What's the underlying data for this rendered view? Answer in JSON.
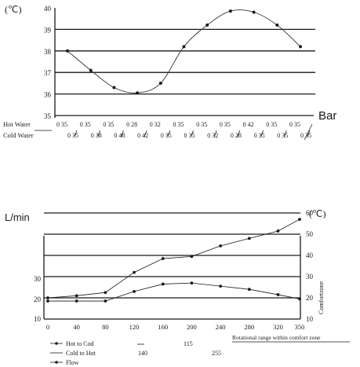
{
  "chart_data": [
    {
      "type": "line",
      "title": "",
      "y_unit": "(℃)",
      "x_unit": "Bar",
      "ylim": [
        35,
        40
      ],
      "y_ticks": [
        35,
        36,
        37,
        38,
        39,
        40
      ],
      "grid": true,
      "rows": [
        {
          "label": "Hot Water",
          "values": [
            "0 35",
            "0 35",
            "0 35",
            "0 28",
            "0 32",
            "0 35",
            "0 35",
            "0 35",
            "0 42",
            "0 35",
            "0 35",
            ""
          ]
        },
        {
          "label": "Cold Water",
          "values": [
            "0 35",
            "0 38",
            "0 48",
            "0 42",
            "0 35",
            "0 35",
            "0 32",
            "0 28",
            "0 35",
            "0 35",
            "0 35"
          ]
        }
      ],
      "series": [
        {
          "values": [
            38.0,
            37.1,
            36.3,
            36.05,
            36.5,
            38.2,
            39.2,
            39.85,
            39.8,
            39.2,
            38.2
          ]
        }
      ]
    },
    {
      "type": "line",
      "title": "",
      "y_left_unit": "L/min",
      "y_right_unit": "(℃)",
      "right_axis_label": "Comfortzone",
      "x_ticks": [
        "0",
        "40",
        "80",
        "120",
        "160",
        "200",
        "240",
        "280",
        "320",
        "350"
      ],
      "x_values": [
        0,
        40,
        80,
        120,
        160,
        200,
        240,
        280,
        320,
        350
      ],
      "xlim": [
        0,
        350
      ],
      "y_left_ticks": [
        "10",
        "20",
        "30"
      ],
      "y_right_ticks": [
        "10",
        "20",
        "30",
        "40",
        "50",
        "60"
      ],
      "ylim_right": [
        10,
        60
      ],
      "grid": true,
      "series": [
        {
          "name": "Hot to Cod",
          "values": [
            18.5,
            18.5,
            18.5,
            23.0,
            26.5,
            27.0,
            25.5,
            24.0,
            21.5,
            19.5
          ]
        },
        {
          "name": "Flow",
          "values": [
            20.0,
            21.0,
            22.5,
            32.0,
            38.5,
            39.5,
            44.5,
            48.0,
            51.5,
            57.0
          ]
        }
      ],
      "legend": [
        {
          "name": "Hot to Cod",
          "value": "115",
          "marker": "dot"
        },
        {
          "name": "Cold to Hot",
          "value": "255",
          "sub_value": "140",
          "marker": "dash"
        },
        {
          "name": "Flow",
          "marker": "dot"
        }
      ],
      "legend_note": "Rotational range within comfort zone"
    }
  ]
}
